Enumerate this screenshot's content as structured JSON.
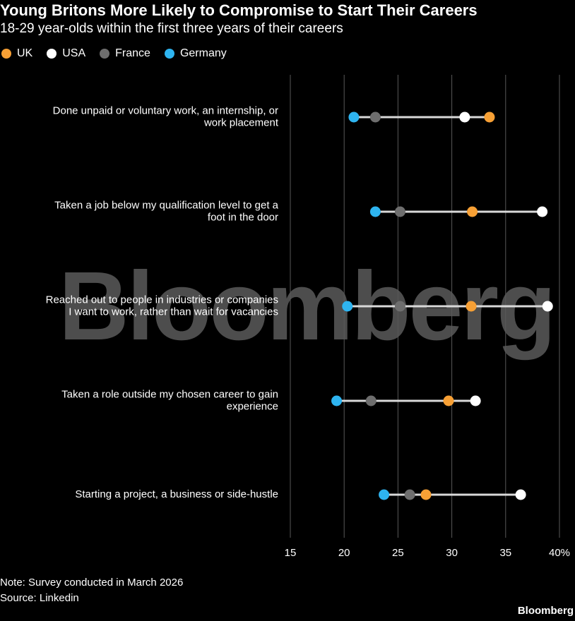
{
  "title": "Young Britons More Likely to Compromise to Start Their Careers",
  "subtitle": "18-29 year-olds within the first three years of their careers",
  "note": "Note: Survey conducted in March 2026",
  "source": "Source: Linkedin",
  "brand": "Bloomberg",
  "watermark": "Bloomberg",
  "colors": {
    "UK": "#f7a035",
    "USA": "#ffffff",
    "France": "#6e6e6e",
    "Germany": "#2eb4f0",
    "connector": "#d9d9d9",
    "grid": "#595959"
  },
  "chart_data": {
    "type": "dot-range",
    "legend_placement": "top-left",
    "grid": true,
    "xlim": [
      15,
      40
    ],
    "ticks": [
      "15",
      "20",
      "25",
      "30",
      "35",
      "40%"
    ],
    "tick_values": [
      15,
      20,
      25,
      30,
      35,
      40
    ],
    "categories": [
      [
        "Done unpaid or voluntary work, an internship, or",
        "work placement"
      ],
      [
        "Taken a job below my qualification level to get a",
        "foot in the door"
      ],
      [
        "Reached out to people in industries or companies",
        "I want to work, rather than wait for vacancies"
      ],
      [
        "Taken a role outside my chosen career to gain",
        "experience"
      ],
      [
        "Starting a project, a business or side-hustle"
      ]
    ],
    "series": [
      {
        "name": "UK",
        "values": [
          33.5,
          31.9,
          31.8,
          29.7,
          27.6
        ]
      },
      {
        "name": "USA",
        "values": [
          31.2,
          38.4,
          38.9,
          32.2,
          36.4
        ]
      },
      {
        "name": "France",
        "values": [
          22.9,
          25.2,
          25.2,
          22.5,
          26.1
        ]
      },
      {
        "name": "Germany",
        "values": [
          20.9,
          22.9,
          20.3,
          19.3,
          23.7
        ]
      }
    ]
  }
}
